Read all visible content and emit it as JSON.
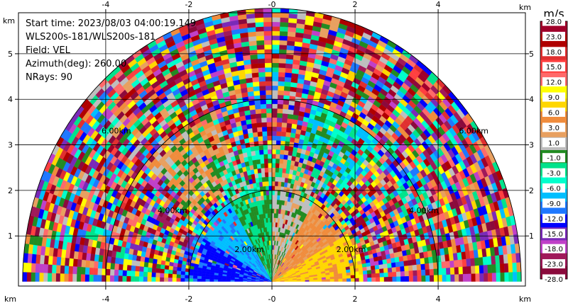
{
  "chart_data": {
    "type": "heatmap",
    "subtype": "radar-ppi-sector",
    "info_lines": [
      "Start time: 2023/08/03 04:00:19.149",
      "WLS200s-181/WLS200s-181",
      "Field: VEL",
      "Azimuth(deg): 260.00",
      "NRays: 90"
    ],
    "x_unit": "km",
    "y_unit": "km",
    "xlim": [
      -6.1,
      6.1
    ],
    "ylim": [
      -0.1,
      5.9
    ],
    "x_ticks": [
      -4,
      -2,
      0,
      2,
      4
    ],
    "x_tick_labels": [
      "-4",
      "-2",
      "-0",
      "2",
      "4"
    ],
    "y_ticks": [
      1,
      2,
      3,
      4,
      5
    ],
    "y_tick_labels": [
      "1",
      "2",
      "3",
      "4",
      "5"
    ],
    "grid": true,
    "range_rings": [
      {
        "radius_km": 2,
        "label": "2.00km"
      },
      {
        "radius_km": 4,
        "label": "4.00km"
      },
      {
        "radius_km": 6,
        "label": "6.00km"
      }
    ],
    "colorbar": {
      "title": "m/s",
      "levels": [
        -28.0,
        -23.0,
        -18.0,
        -15.0,
        -12.0,
        -9.0,
        -6.0,
        -3.0,
        -1.0,
        1.0,
        3.0,
        6.0,
        9.0,
        12.0,
        15.0,
        18.0,
        23.0,
        28.0
      ],
      "tick_labels": [
        "-28.0",
        "-23.0",
        "-18.0",
        "-15.0",
        "-12.0",
        "-9.0",
        "-6.0",
        "-3.0",
        "-1.0",
        "1.0",
        "3.0",
        "6.0",
        "9.0",
        "12.0",
        "15.0",
        "18.0",
        "23.0",
        "28.0"
      ],
      "colors": [
        "#8b0a3c",
        "#a0195a",
        "#c040c8",
        "#7a2ab8",
        "#0000ff",
        "#1e78ff",
        "#00bfff",
        "#00ffcc",
        "#00e38c",
        "#228b22",
        "#bebebe",
        "#e8a060",
        "#f08c3c",
        "#ffd700",
        "#ffff00",
        "#ff6a6a",
        "#ff4040",
        "#e03030",
        "#b00000",
        "#a0002a"
      ]
    },
    "velocity_regions": [
      {
        "azimuth_deg": [
          -90,
          -60
        ],
        "range_km": [
          0,
          2.2
        ],
        "velocity_m_s": -13
      },
      {
        "azimuth_deg": [
          -60,
          -30
        ],
        "range_km": [
          0,
          2.2
        ],
        "velocity_m_s": -8
      },
      {
        "azimuth_deg": [
          -30,
          0
        ],
        "range_km": [
          0,
          3.0
        ],
        "velocity_m_s": -1
      },
      {
        "azimuth_deg": [
          0,
          30
        ],
        "range_km": [
          0,
          3.0
        ],
        "velocity_m_s": 2
      },
      {
        "azimuth_deg": [
          30,
          60
        ],
        "range_km": [
          0,
          2.2
        ],
        "velocity_m_s": 7
      },
      {
        "azimuth_deg": [
          60,
          90
        ],
        "range_km": [
          0,
          2.2
        ],
        "velocity_m_s": 10
      },
      {
        "azimuth_deg": [
          -50,
          -20
        ],
        "range_km": [
          2.0,
          4.0
        ],
        "velocity_m_s": 4
      },
      {
        "azimuth_deg": [
          15,
          40
        ],
        "range_km": [
          2.0,
          4.0
        ],
        "velocity_m_s": -4
      },
      {
        "azimuth_deg": [
          -90,
          90
        ],
        "range_km": [
          4.0,
          6.0
        ],
        "velocity_m_s": "noise"
      }
    ]
  }
}
